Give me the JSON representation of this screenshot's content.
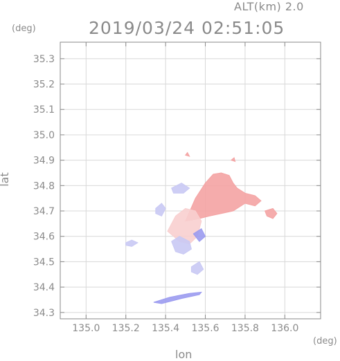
{
  "header": {
    "altitude_label": "ALT(km) 2.0",
    "timestamp": "2019/03/24 02:51:05"
  },
  "axes": {
    "y_unit": "(deg)",
    "x_unit": "(deg)",
    "x_title": "lon",
    "y_title": "lat"
  },
  "map_data": {
    "type": "radar_field",
    "x_range": [
      134.87,
      136.18
    ],
    "y_range": [
      34.275,
      35.365
    ],
    "x_ticks": [
      135.0,
      135.2,
      135.4,
      135.6,
      135.8,
      136.0
    ],
    "x_tick_labels": [
      "135.0",
      "135.2",
      "135.4",
      "135.6",
      "135.8",
      "136.0"
    ],
    "y_ticks": [
      34.3,
      34.4,
      34.5,
      34.6,
      34.7,
      34.8,
      34.9,
      35.0,
      35.1,
      35.2,
      35.3
    ],
    "y_tick_labels": [
      "34.3",
      "34.4",
      "34.5",
      "34.6",
      "34.7",
      "34.8",
      "34.9",
      "35.0",
      "35.1",
      "35.2",
      "35.3"
    ],
    "grid": true,
    "colors": {
      "axis": "#8a8a8a",
      "grid": "#d8d8d8",
      "positive": "#f4a3a3",
      "positive_light": "#f8cfcf",
      "negative": "#9b9bf0",
      "negative_light": "#c9c9f4"
    },
    "echo_regions": [
      {
        "tone": "positive",
        "points": [
          [
            135.5,
            34.66
          ],
          [
            135.55,
            34.75
          ],
          [
            135.6,
            34.81
          ],
          [
            135.64,
            34.845
          ],
          [
            135.68,
            34.85
          ],
          [
            135.72,
            34.84
          ],
          [
            135.74,
            34.81
          ],
          [
            135.76,
            34.79
          ],
          [
            135.8,
            34.77
          ],
          [
            135.85,
            34.76
          ],
          [
            135.88,
            34.74
          ],
          [
            135.85,
            34.72
          ],
          [
            135.8,
            34.73
          ],
          [
            135.74,
            34.7
          ],
          [
            135.68,
            34.69
          ],
          [
            135.62,
            34.68
          ],
          [
            135.57,
            34.67
          ]
        ]
      },
      {
        "tone": "positive_light",
        "points": [
          [
            135.41,
            34.62
          ],
          [
            135.45,
            34.68
          ],
          [
            135.5,
            34.71
          ],
          [
            135.55,
            34.7
          ],
          [
            135.58,
            34.66
          ],
          [
            135.56,
            34.6
          ],
          [
            135.52,
            34.57
          ],
          [
            135.47,
            34.58
          ]
        ]
      },
      {
        "tone": "negative_light",
        "points": [
          [
            135.43,
            34.58
          ],
          [
            135.47,
            34.6
          ],
          [
            135.52,
            34.58
          ],
          [
            135.53,
            34.55
          ],
          [
            135.49,
            34.53
          ],
          [
            135.45,
            34.54
          ]
        ]
      },
      {
        "tone": "negative_light",
        "points": [
          [
            135.53,
            34.48
          ],
          [
            135.57,
            34.5
          ],
          [
            135.59,
            34.47
          ],
          [
            135.56,
            34.45
          ],
          [
            135.53,
            34.46
          ]
        ]
      },
      {
        "tone": "negative_light",
        "points": [
          [
            135.35,
            34.71
          ],
          [
            135.38,
            34.73
          ],
          [
            135.4,
            34.71
          ],
          [
            135.38,
            34.68
          ],
          [
            135.35,
            34.69
          ]
        ]
      },
      {
        "tone": "negative_light",
        "points": [
          [
            135.2,
            34.575
          ],
          [
            135.23,
            34.585
          ],
          [
            135.26,
            34.575
          ],
          [
            135.23,
            34.56
          ],
          [
            135.2,
            34.565
          ]
        ]
      },
      {
        "tone": "negative_light",
        "points": [
          [
            135.43,
            34.79
          ],
          [
            135.48,
            34.81
          ],
          [
            135.52,
            34.79
          ],
          [
            135.49,
            34.77
          ],
          [
            135.44,
            34.77
          ]
        ]
      },
      {
        "tone": "positive",
        "points": [
          [
            135.9,
            34.7
          ],
          [
            135.94,
            34.71
          ],
          [
            135.96,
            34.69
          ],
          [
            135.94,
            34.67
          ],
          [
            135.91,
            34.68
          ]
        ]
      },
      {
        "tone": "negative",
        "points": [
          [
            135.34,
            34.34
          ],
          [
            135.42,
            34.36
          ],
          [
            135.52,
            34.375
          ],
          [
            135.58,
            34.38
          ],
          [
            135.57,
            34.37
          ],
          [
            135.48,
            34.355
          ],
          [
            135.38,
            34.335
          ]
        ]
      },
      {
        "tone": "negative",
        "points": [
          [
            135.54,
            34.61
          ],
          [
            135.58,
            34.63
          ],
          [
            135.6,
            34.6
          ],
          [
            135.57,
            34.58
          ]
        ]
      },
      {
        "tone": "positive",
        "points": [
          [
            135.5,
            34.92
          ],
          [
            135.51,
            34.93
          ],
          [
            135.52,
            34.915
          ]
        ]
      },
      {
        "tone": "positive",
        "points": [
          [
            135.73,
            34.9
          ],
          [
            135.745,
            34.91
          ],
          [
            135.75,
            34.895
          ]
        ]
      }
    ]
  }
}
